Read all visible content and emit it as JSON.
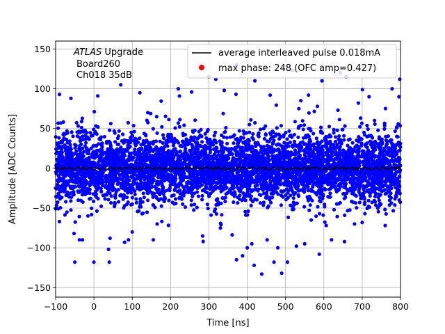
{
  "chart_data": {
    "type": "scatter",
    "title": "",
    "xlabel": "Time [ns]",
    "ylabel": "Amplitude [ADC Counts]",
    "xlim": [
      -100,
      800
    ],
    "ylim": [
      -162,
      160
    ],
    "xticks": [
      -100,
      0,
      100,
      200,
      300,
      400,
      500,
      600,
      700,
      800
    ],
    "yticks": [
      -150,
      -100,
      -50,
      0,
      50,
      100,
      150
    ],
    "grid": true,
    "legend_position": "top-right",
    "annotation": {
      "italic": "ATLAS",
      "line1_rest": " Upgrade",
      "line2": "Board260",
      "line3": "Ch018 35dB"
    },
    "series": [
      {
        "name": "average interleaved pulse 0.018mA",
        "kind": "line",
        "color": "#000000",
        "x_range": [
          -100,
          800
        ],
        "mean_level": 0,
        "noise_amplitude": 2
      },
      {
        "name": "max phase: 248 (OFC amp=0.427)",
        "kind": "scatter",
        "color": "#0000ff",
        "legend_color": "#ff0000",
        "x_range": [
          -100,
          800
        ],
        "center": 0,
        "dense_band": [
          -35,
          35
        ],
        "typical_spread": [
          -60,
          60
        ],
        "extreme_range": [
          -133,
          130
        ],
        "outliers": [
          {
            "x": -90,
            "y": -67
          },
          {
            "x": -52,
            "y": -82
          },
          {
            "x": -50,
            "y": -118
          },
          {
            "x": -38,
            "y": -90
          },
          {
            "x": -30,
            "y": -90
          },
          {
            "x": 0,
            "y": -118
          },
          {
            "x": 38,
            "y": -102
          },
          {
            "x": 40,
            "y": -118
          },
          {
            "x": 42,
            "y": -88
          },
          {
            "x": 80,
            "y": -93
          },
          {
            "x": 90,
            "y": -90
          },
          {
            "x": 100,
            "y": -80
          },
          {
            "x": 155,
            "y": -90
          },
          {
            "x": 285,
            "y": -92
          },
          {
            "x": 372,
            "y": -115
          },
          {
            "x": 388,
            "y": -110
          },
          {
            "x": 412,
            "y": -95
          },
          {
            "x": 418,
            "y": -122
          },
          {
            "x": 438,
            "y": -133
          },
          {
            "x": 452,
            "y": -90
          },
          {
            "x": 470,
            "y": -118
          },
          {
            "x": 490,
            "y": -132
          },
          {
            "x": 505,
            "y": -118
          },
          {
            "x": 550,
            "y": -95
          },
          {
            "x": 588,
            "y": -108
          },
          {
            "x": 620,
            "y": -90
          },
          {
            "x": -90,
            "y": 93
          },
          {
            "x": -60,
            "y": 88
          },
          {
            "x": 10,
            "y": 91
          },
          {
            "x": 120,
            "y": 95
          },
          {
            "x": 300,
            "y": 115
          },
          {
            "x": 318,
            "y": 112
          },
          {
            "x": 372,
            "y": 130
          },
          {
            "x": 420,
            "y": 110
          },
          {
            "x": 518,
            "y": 123
          },
          {
            "x": 595,
            "y": 110
          },
          {
            "x": 658,
            "y": 115
          },
          {
            "x": 718,
            "y": 90
          },
          {
            "x": 778,
            "y": 100
          },
          {
            "x": 798,
            "y": 112
          },
          {
            "x": 796,
            "y": 90
          },
          {
            "x": 560,
            "y": 92
          },
          {
            "x": 460,
            "y": 92
          },
          {
            "x": 70,
            "y": 105
          },
          {
            "x": 220,
            "y": 100
          },
          {
            "x": 340,
            "y": 98
          },
          {
            "x": 690,
            "y": 82
          },
          {
            "x": 255,
            "y": 96
          },
          {
            "x": 540,
            "y": 85
          },
          {
            "x": 165,
            "y": -70
          },
          {
            "x": 330,
            "y": -75
          },
          {
            "x": 680,
            "y": -70
          },
          {
            "x": 760,
            "y": -72
          },
          {
            "x": 700,
            "y": -68
          },
          {
            "x": 480,
            "y": -100
          },
          {
            "x": 400,
            "y": -100
          }
        ]
      }
    ]
  }
}
